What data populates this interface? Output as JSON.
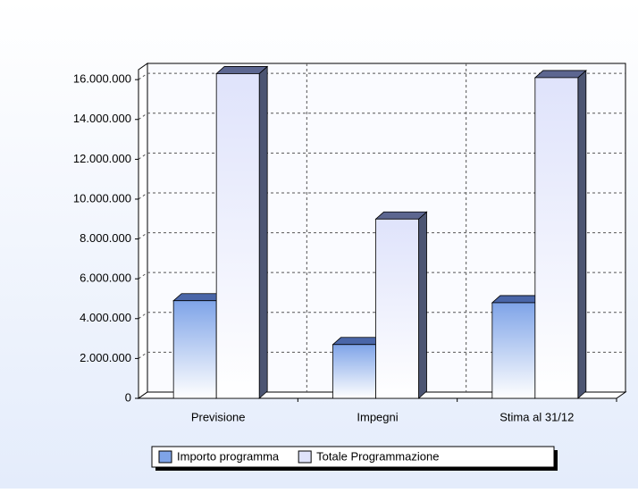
{
  "chart_data": {
    "type": "bar3d",
    "categories": [
      "Previsione",
      "Impegni",
      "Stima al 31/12"
    ],
    "series": [
      {
        "name": "Importo programma",
        "color": "#7fa4e8",
        "values": [
          4900000,
          2700000,
          4800000
        ]
      },
      {
        "name": "Totale Programmazione",
        "color": "#dfe3fb",
        "values": [
          16300000,
          9000000,
          16100000
        ]
      }
    ],
    "ylim": [
      0,
      16500000
    ],
    "yticks": [
      0,
      {
        "value": 2000000,
        "label": "2.000.000"
      },
      {
        "value": 4000000,
        "label": "4.000.000"
      },
      {
        "value": 6000000,
        "label": "6.000.000"
      },
      {
        "value": 8000000,
        "label": "8.000.000"
      },
      {
        "value": 10000000,
        "label": "10.000.000"
      },
      {
        "value": 12000000,
        "label": "12.000.000"
      },
      {
        "value": 14000000,
        "label": "14.000.000"
      },
      {
        "value": 16000000,
        "label": "16.000.000"
      }
    ],
    "grid": true
  }
}
